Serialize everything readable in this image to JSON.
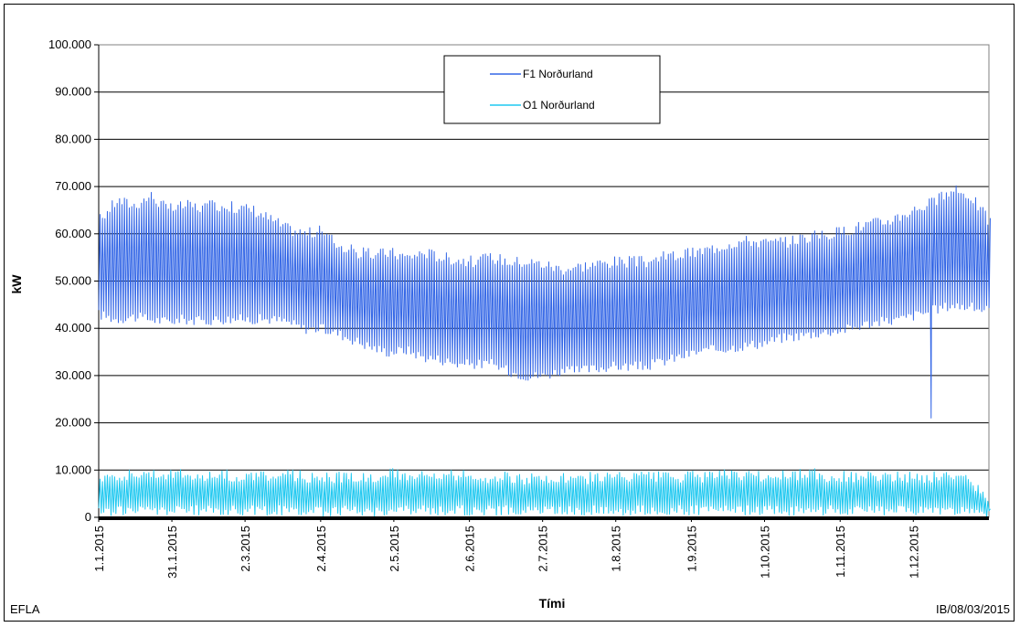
{
  "footer": {
    "left": "EFLA",
    "right": "IB/08/03/2015"
  },
  "chart_data": {
    "type": "line",
    "title": "",
    "xlabel": "Tími",
    "ylabel": "kW",
    "ylim": [
      0,
      100000
    ],
    "yticks": [
      "0",
      "10.000",
      "20.000",
      "30.000",
      "40.000",
      "50.000",
      "60.000",
      "70.000",
      "80.000",
      "90.000",
      "100.000"
    ],
    "xticks": [
      "1.1.2015",
      "31.1.2015",
      "2.3.2015",
      "2.4.2015",
      "2.5.2015",
      "2.6.2015",
      "2.7.2015",
      "1.8.2015",
      "1.9.2015",
      "1.10.2015",
      "1.11.2015",
      "1.12.2015"
    ],
    "grid": true,
    "legend_position": "top-center",
    "series": [
      {
        "name": "F1 Norðurland",
        "color": "#3366e6",
        "sampling": "approximate daily minimum and maximum, one week per step",
        "x": [
          "1.1.2015",
          "8.1.2015",
          "15.1.2015",
          "22.1.2015",
          "29.1.2015",
          "5.2.2015",
          "12.2.2015",
          "19.2.2015",
          "26.2.2015",
          "5.3.2015",
          "12.3.2015",
          "19.3.2015",
          "26.3.2015",
          "2.4.2015",
          "9.4.2015",
          "16.4.2015",
          "23.4.2015",
          "30.4.2015",
          "7.5.2015",
          "14.5.2015",
          "21.5.2015",
          "28.5.2015",
          "4.6.2015",
          "11.6.2015",
          "18.6.2015",
          "25.6.2015",
          "2.7.2015",
          "9.7.2015",
          "16.7.2015",
          "23.7.2015",
          "30.7.2015",
          "6.8.2015",
          "13.8.2015",
          "20.8.2015",
          "27.8.2015",
          "3.9.2015",
          "10.9.2015",
          "17.9.2015",
          "24.9.2015",
          "1.10.2015",
          "8.10.2015",
          "15.10.2015",
          "22.10.2015",
          "29.10.2015",
          "5.11.2015",
          "12.11.2015",
          "19.11.2015",
          "26.11.2015",
          "3.12.2015",
          "10.12.2015",
          "17.12.2015",
          "24.12.2015",
          "31.12.2015"
        ],
        "min": [
          43000,
          42000,
          42500,
          42000,
          41500,
          42000,
          41500,
          42000,
          42000,
          42000,
          42000,
          41500,
          40000,
          40000,
          39000,
          37500,
          36000,
          35000,
          35500,
          34000,
          33500,
          32500,
          32500,
          32500,
          31000,
          30000,
          30000,
          31000,
          31000,
          31500,
          32000,
          32000,
          32000,
          33000,
          34000,
          35000,
          35500,
          36000,
          36500,
          37000,
          38000,
          38500,
          39000,
          39500,
          40000,
          41000,
          41500,
          42000,
          43000,
          44000,
          45000,
          44500,
          44000
        ],
        "max": [
          63000,
          67000,
          66000,
          68000,
          65000,
          66000,
          65500,
          66000,
          65500,
          65000,
          63000,
          61000,
          60000,
          60500,
          57500,
          56000,
          55500,
          56000,
          55000,
          56000,
          55000,
          54500,
          54000,
          55000,
          54000,
          54000,
          53500,
          52500,
          53000,
          53500,
          54000,
          54000,
          54000,
          55000,
          55500,
          56000,
          57000,
          58000,
          58500,
          58000,
          58000,
          59000,
          59500,
          60000,
          61000,
          62000,
          62500,
          64000,
          65500,
          67000,
          69000,
          68000,
          63000
        ],
        "notable_points": [
          {
            "x": "8.12.2015",
            "y": 21000
          }
        ]
      },
      {
        "name": "O1 Norðurland",
        "color": "#1fc8f0",
        "sampling": "approximate daily minimum and maximum, one week per step",
        "x": [
          "1.1.2015",
          "8.1.2015",
          "15.1.2015",
          "22.1.2015",
          "29.1.2015",
          "5.2.2015",
          "12.2.2015",
          "19.2.2015",
          "26.2.2015",
          "5.3.2015",
          "12.3.2015",
          "19.3.2015",
          "26.3.2015",
          "2.4.2015",
          "9.4.2015",
          "16.4.2015",
          "23.4.2015",
          "30.4.2015",
          "7.5.2015",
          "14.5.2015",
          "21.5.2015",
          "28.5.2015",
          "4.6.2015",
          "11.6.2015",
          "18.6.2015",
          "25.6.2015",
          "2.7.2015",
          "9.7.2015",
          "16.7.2015",
          "23.7.2015",
          "30.7.2015",
          "6.8.2015",
          "13.8.2015",
          "20.8.2015",
          "27.8.2015",
          "3.9.2015",
          "10.9.2015",
          "17.9.2015",
          "24.9.2015",
          "1.10.2015",
          "8.10.2015",
          "15.10.2015",
          "22.10.2015",
          "29.10.2015",
          "5.11.2015",
          "12.11.2015",
          "19.11.2015",
          "26.11.2015",
          "3.12.2015",
          "10.12.2015",
          "17.12.2015",
          "24.12.2015",
          "31.12.2015"
        ],
        "min": [
          1000,
          1500,
          1500,
          1500,
          1500,
          1500,
          1500,
          1500,
          1500,
          1500,
          1500,
          1500,
          1500,
          1200,
          1500,
          1500,
          1200,
          1500,
          1500,
          1500,
          1500,
          1500,
          1500,
          1500,
          1500,
          1500,
          1500,
          1500,
          1500,
          1500,
          1500,
          1500,
          1500,
          1500,
          1500,
          1500,
          1500,
          1500,
          1500,
          1500,
          1500,
          1500,
          1500,
          1500,
          1500,
          1500,
          1500,
          1500,
          1500,
          1500,
          1500,
          1200,
          500
        ],
        "max": [
          8500,
          9000,
          9000,
          9500,
          9000,
          9000,
          8500,
          9000,
          8500,
          8500,
          8500,
          9000,
          8500,
          8500,
          8500,
          8500,
          8500,
          9000,
          9000,
          8500,
          8500,
          9000,
          8500,
          8500,
          8500,
          8000,
          8000,
          8000,
          8000,
          8500,
          8500,
          8500,
          8500,
          8500,
          8500,
          8500,
          8500,
          9000,
          8500,
          8500,
          9000,
          9000,
          9000,
          8500,
          8500,
          8500,
          8500,
          8500,
          8500,
          8500,
          9000,
          8000,
          3000
        ]
      }
    ]
  }
}
